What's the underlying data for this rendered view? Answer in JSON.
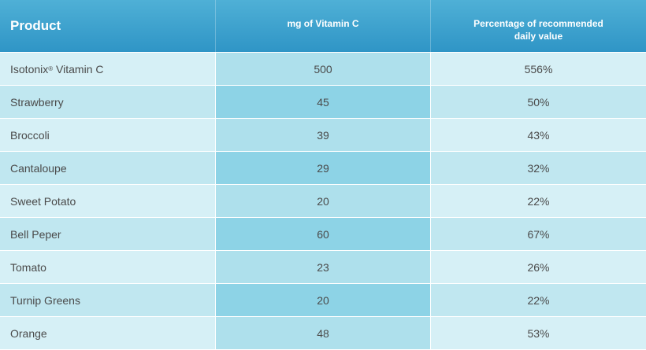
{
  "chart_data": {
    "type": "table",
    "columns": [
      "Product",
      "mg of Vitamin C",
      "Percentage of recommended daily value"
    ],
    "rows": [
      {
        "product": "Isotonix",
        "product_mark": "®",
        "product_suffix": " Vitamin C",
        "mg": "500",
        "pct": "556%"
      },
      {
        "product": "Strawberry",
        "product_mark": "",
        "product_suffix": "",
        "mg": "45",
        "pct": "50%"
      },
      {
        "product": "Broccoli",
        "product_mark": "",
        "product_suffix": "",
        "mg": "39",
        "pct": "43%"
      },
      {
        "product": "Cantaloupe",
        "product_mark": "",
        "product_suffix": "",
        "mg": "29",
        "pct": "32%"
      },
      {
        "product": "Sweet Potato",
        "product_mark": "",
        "product_suffix": "",
        "mg": "20",
        "pct": "22%"
      },
      {
        "product": "Bell Peper",
        "product_mark": "",
        "product_suffix": "",
        "mg": "60",
        "pct": "67%"
      },
      {
        "product": "Tomato",
        "product_mark": "",
        "product_suffix": "",
        "mg": "23",
        "pct": "26%"
      },
      {
        "product": "Turnip Greens",
        "product_mark": "",
        "product_suffix": "",
        "mg": "20",
        "pct": "22%"
      },
      {
        "product": "Orange",
        "product_mark": "",
        "product_suffix": "",
        "mg": "48",
        "pct": "53%"
      }
    ]
  },
  "colors": {
    "header_top": "#4fb0d6",
    "header_bottom": "#2f95c6",
    "row_light": "#d6f0f6",
    "row_mid": "#c0e7f0",
    "col_highlight_light": "#aee0ec",
    "col_highlight_dark": "#8dd3e6",
    "text": "#4a4a4a"
  }
}
